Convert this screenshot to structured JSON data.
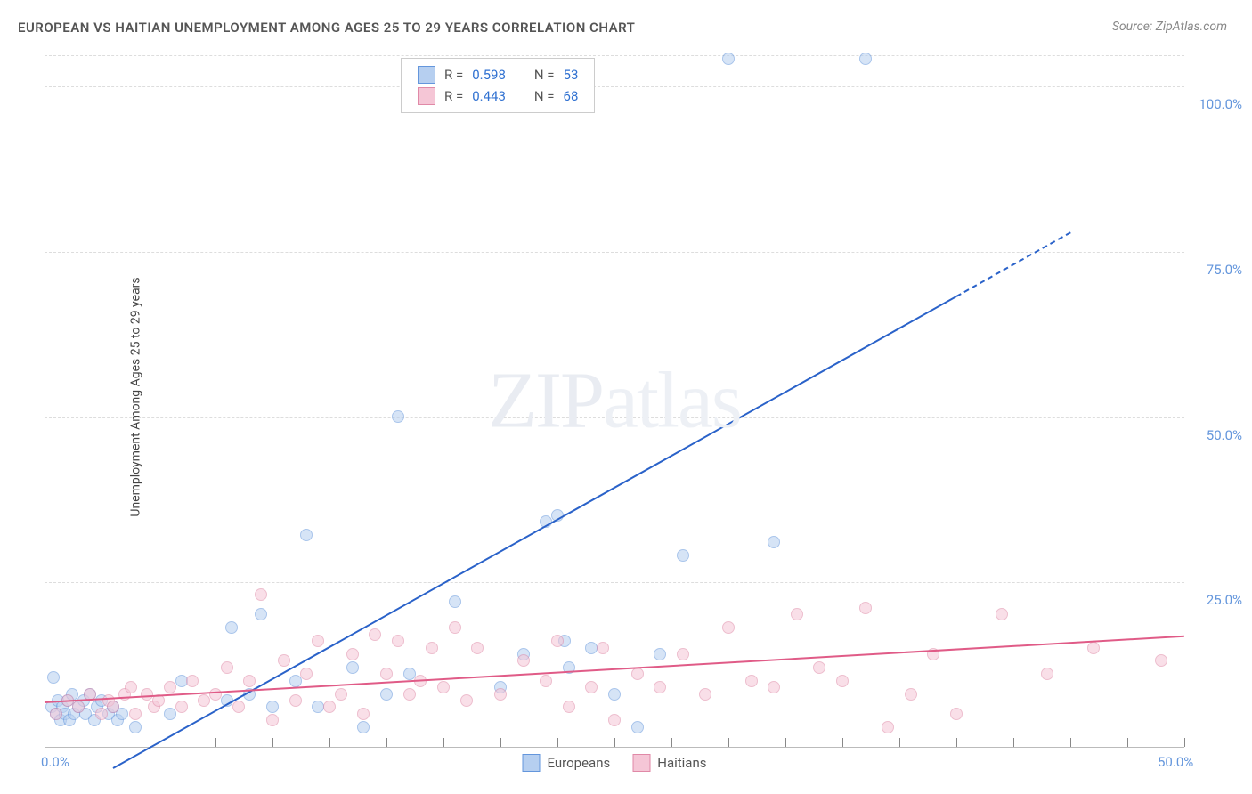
{
  "title": "EUROPEAN VS HAITIAN UNEMPLOYMENT AMONG AGES 25 TO 29 YEARS CORRELATION CHART",
  "source_prefix": "Source: ",
  "source_name": "ZipAtlas.com",
  "ylabel": "Unemployment Among Ages 25 to 29 years",
  "watermark_bold": "ZIP",
  "watermark_thin": "atlas",
  "chart": {
    "type": "scatter",
    "xlim": [
      0,
      50
    ],
    "ylim": [
      0,
      105
    ],
    "x_ticks_minor": [
      2.5,
      5,
      7.5,
      10,
      12.5,
      15,
      17.5,
      20,
      22.5,
      25,
      27.5,
      30,
      32.5,
      35,
      37.5,
      40,
      42.5,
      45,
      47.5,
      50
    ],
    "x_ticks_labeled": [
      {
        "v": 0,
        "l": "0.0%"
      },
      {
        "v": 50,
        "l": "50.0%"
      }
    ],
    "y_grid": [
      {
        "v": 25,
        "l": "25.0%"
      },
      {
        "v": 50,
        "l": "50.0%"
      },
      {
        "v": 75,
        "l": "75.0%"
      },
      {
        "v": 100,
        "l": "100.0%"
      }
    ],
    "grid_color": "#dddddd",
    "axis_color": "#bbbbbb",
    "background_color": "#ffffff"
  },
  "series": [
    {
      "name": "Europeans",
      "fill": "#b6cff0",
      "stroke": "#6496dc",
      "fill_opacity": 0.55,
      "line_color": "#2a62c9",
      "line_width": 2,
      "marker_r": 7,
      "R_label": "R = ",
      "R_value": "0.598",
      "N_label": "N = ",
      "N_value": "53",
      "trend": {
        "x1": 3,
        "y1": -3,
        "x2": 45,
        "y2": 78,
        "dash_from_x": 40
      },
      "points": [
        [
          0.3,
          6
        ],
        [
          0.5,
          5
        ],
        [
          0.6,
          7
        ],
        [
          0.7,
          4
        ],
        [
          0.8,
          6
        ],
        [
          0.9,
          5
        ],
        [
          1.0,
          7
        ],
        [
          1.1,
          4
        ],
        [
          1.2,
          8
        ],
        [
          1.3,
          5
        ],
        [
          1.5,
          6
        ],
        [
          1.7,
          7
        ],
        [
          1.8,
          5
        ],
        [
          2.0,
          8
        ],
        [
          2.2,
          4
        ],
        [
          2.3,
          6
        ],
        [
          2.5,
          7
        ],
        [
          2.8,
          5
        ],
        [
          3.0,
          6
        ],
        [
          3.2,
          4
        ],
        [
          3.4,
          5
        ],
        [
          4.0,
          3
        ],
        [
          5.5,
          5
        ],
        [
          6.0,
          10
        ],
        [
          8.0,
          7
        ],
        [
          8.2,
          18
        ],
        [
          9.0,
          8
        ],
        [
          9.5,
          20
        ],
        [
          10.0,
          6
        ],
        [
          11.0,
          10
        ],
        [
          11.5,
          32
        ],
        [
          12.0,
          6
        ],
        [
          13.5,
          12
        ],
        [
          14.0,
          3
        ],
        [
          15.0,
          8
        ],
        [
          15.5,
          50
        ],
        [
          16.0,
          11
        ],
        [
          18.0,
          22
        ],
        [
          20.0,
          9
        ],
        [
          21.0,
          14
        ],
        [
          22.0,
          34
        ],
        [
          22.5,
          35
        ],
        [
          22.8,
          16
        ],
        [
          23.0,
          12
        ],
        [
          24.0,
          15
        ],
        [
          25.0,
          8
        ],
        [
          26.0,
          3
        ],
        [
          27.0,
          14
        ],
        [
          28.0,
          29
        ],
        [
          30.0,
          104
        ],
        [
          32.0,
          31
        ],
        [
          36.0,
          104
        ],
        [
          0.4,
          10.5
        ]
      ]
    },
    {
      "name": "Haitians",
      "fill": "#f5c6d6",
      "stroke": "#e089a7",
      "fill_opacity": 0.55,
      "line_color": "#e05b87",
      "line_width": 2,
      "marker_r": 7,
      "R_label": "R = ",
      "R_value": "0.443",
      "N_label": "N = ",
      "N_value": "68",
      "trend": {
        "x1": 0,
        "y1": 7,
        "x2": 50,
        "y2": 17
      },
      "points": [
        [
          0.5,
          5
        ],
        [
          1.0,
          7
        ],
        [
          1.5,
          6
        ],
        [
          2.0,
          8
        ],
        [
          2.5,
          5
        ],
        [
          2.8,
          7
        ],
        [
          3.0,
          6
        ],
        [
          3.5,
          8
        ],
        [
          3.8,
          9
        ],
        [
          4.0,
          5
        ],
        [
          4.5,
          8
        ],
        [
          4.8,
          6
        ],
        [
          5.0,
          7
        ],
        [
          5.5,
          9
        ],
        [
          6.0,
          6
        ],
        [
          6.5,
          10
        ],
        [
          7.0,
          7
        ],
        [
          7.5,
          8
        ],
        [
          8.0,
          12
        ],
        [
          8.5,
          6
        ],
        [
          9.0,
          10
        ],
        [
          9.5,
          23
        ],
        [
          10.0,
          4
        ],
        [
          10.5,
          13
        ],
        [
          11.0,
          7
        ],
        [
          11.5,
          11
        ],
        [
          12.0,
          16
        ],
        [
          12.5,
          6
        ],
        [
          13.0,
          8
        ],
        [
          13.5,
          14
        ],
        [
          14.0,
          5
        ],
        [
          14.5,
          17
        ],
        [
          15.0,
          11
        ],
        [
          15.5,
          16
        ],
        [
          16.0,
          8
        ],
        [
          16.5,
          10
        ],
        [
          17.0,
          15
        ],
        [
          17.5,
          9
        ],
        [
          18.0,
          18
        ],
        [
          18.5,
          7
        ],
        [
          19.0,
          15
        ],
        [
          20.0,
          8
        ],
        [
          21.0,
          13
        ],
        [
          22.0,
          10
        ],
        [
          22.5,
          16
        ],
        [
          23.0,
          6
        ],
        [
          24.0,
          9
        ],
        [
          24.5,
          15
        ],
        [
          25.0,
          4
        ],
        [
          26.0,
          11
        ],
        [
          27.0,
          9
        ],
        [
          28.0,
          14
        ],
        [
          29.0,
          8
        ],
        [
          30.0,
          18
        ],
        [
          31.0,
          10
        ],
        [
          32.0,
          9
        ],
        [
          33.0,
          20
        ],
        [
          34.0,
          12
        ],
        [
          35.0,
          10
        ],
        [
          36.0,
          21
        ],
        [
          37.0,
          3
        ],
        [
          38.0,
          8
        ],
        [
          39.0,
          14
        ],
        [
          40.0,
          5
        ],
        [
          42.0,
          20
        ],
        [
          44.0,
          11
        ],
        [
          46.0,
          15
        ],
        [
          49.0,
          13
        ]
      ]
    }
  ],
  "bottom_legend": [
    {
      "label": "Europeans",
      "key": 0
    },
    {
      "label": "Haitians",
      "key": 1
    }
  ]
}
